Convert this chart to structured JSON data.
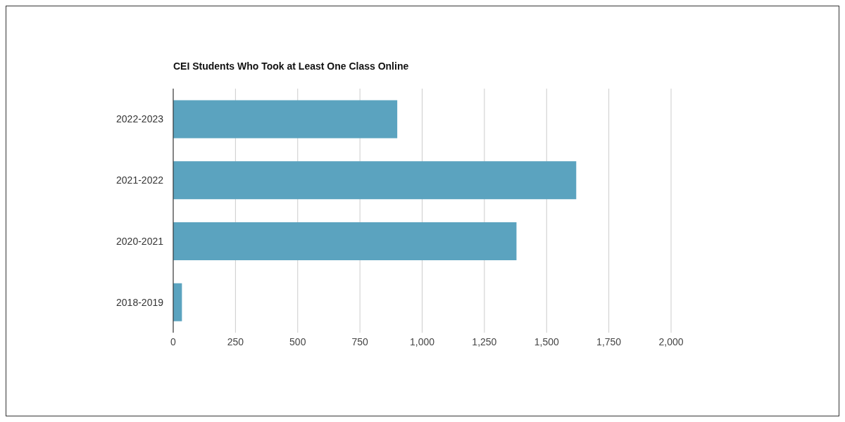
{
  "chart_data": {
    "type": "bar",
    "orientation": "horizontal",
    "title": "CEI Students Who Took at Least One Class Online",
    "categories": [
      "2022-2023",
      "2021-2022",
      "2020-2021",
      "2018-2019"
    ],
    "values": [
      900,
      1619,
      1379,
      35
    ],
    "color": "#5ba3bf",
    "xlim": [
      0,
      2000
    ],
    "xticks": [
      0,
      250,
      500,
      750,
      {
        "value": 1000,
        "label": "1,000"
      },
      {
        "value": 1250,
        "label": "1,250"
      },
      {
        "value": 1500,
        "label": "1,500"
      },
      {
        "value": 1750,
        "label": "1,750"
      },
      {
        "value": 2000,
        "label": "2,000"
      }
    ],
    "grid": "x"
  }
}
